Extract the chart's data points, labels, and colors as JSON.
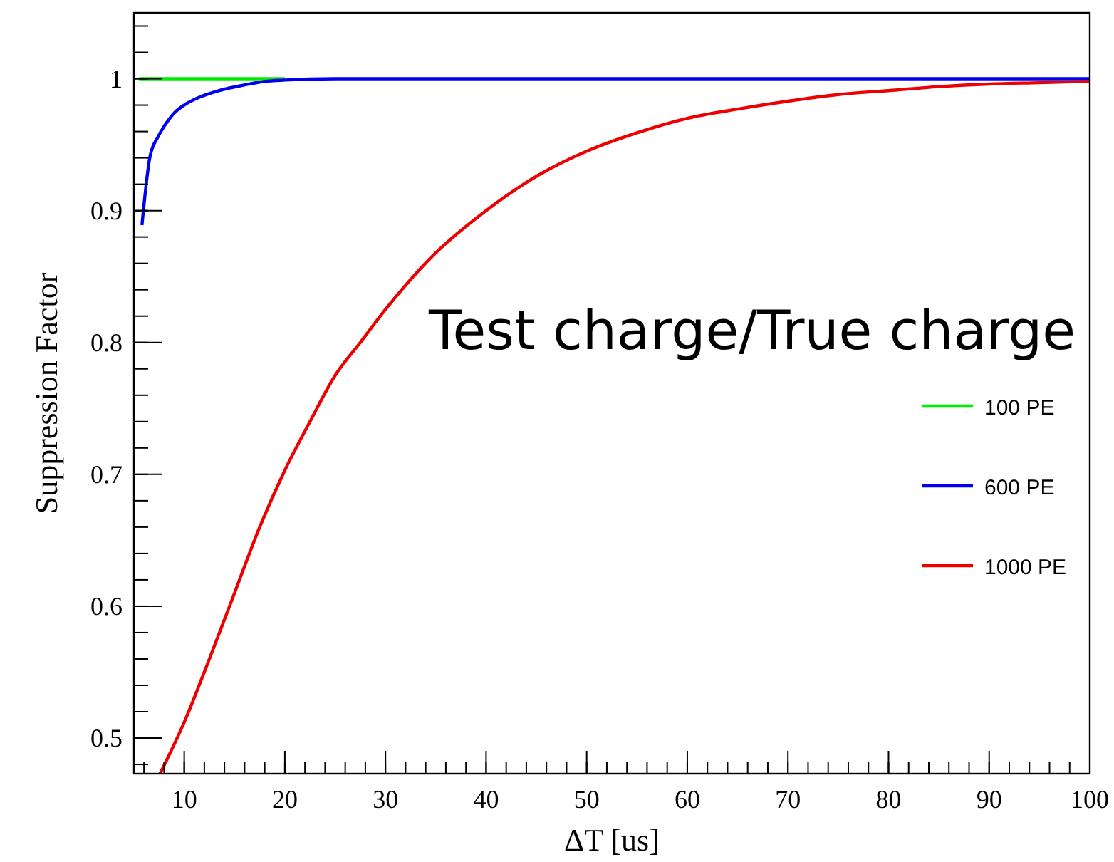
{
  "chart_data": {
    "type": "line",
    "xlabel": "ΔT [us]",
    "ylabel": "Suppression Factor",
    "annotations": [
      "Test charge/True charge"
    ],
    "xlim": [
      5,
      100
    ],
    "ylim": [
      0.473,
      1.05
    ],
    "xticks": [
      10,
      20,
      30,
      40,
      50,
      60,
      70,
      80,
      90,
      100
    ],
    "yticks": [
      0.5,
      0.6,
      0.7,
      0.8,
      0.9,
      1
    ],
    "legend": "right",
    "grid": false,
    "series": [
      {
        "name": "100 PE",
        "color": "#00ee00",
        "x": [
          5.5,
          10,
          15,
          20
        ],
        "values": [
          1,
          1,
          1,
          1
        ]
      },
      {
        "name": "600 PE",
        "color": "#0000ee",
        "x": [
          5.8,
          6.6,
          7.4,
          8.1,
          9,
          10.2,
          11.5,
          13,
          14.5,
          15.8,
          18,
          20,
          25,
          40,
          60,
          80,
          100
        ],
        "values": [
          0.889,
          0.941,
          0.956,
          0.965,
          0.974,
          0.981,
          0.986,
          0.99,
          0.993,
          0.995,
          0.998,
          0.999,
          1,
          1,
          1,
          1,
          1
        ]
      },
      {
        "name": "1000 PE",
        "color": "#ee0000",
        "x": [
          7.6,
          10,
          12.5,
          15,
          17.5,
          20,
          22.5,
          25,
          27.5,
          30,
          35,
          40,
          45,
          50,
          55,
          60,
          65,
          70,
          75,
          80,
          85,
          90,
          95,
          100
        ],
        "values": [
          0.473,
          0.512,
          0.56,
          0.61,
          0.66,
          0.703,
          0.74,
          0.775,
          0.8,
          0.825,
          0.868,
          0.9,
          0.926,
          0.945,
          0.959,
          0.97,
          0.977,
          0.983,
          0.988,
          0.991,
          0.994,
          0.996,
          0.997,
          0.998
        ]
      }
    ]
  }
}
